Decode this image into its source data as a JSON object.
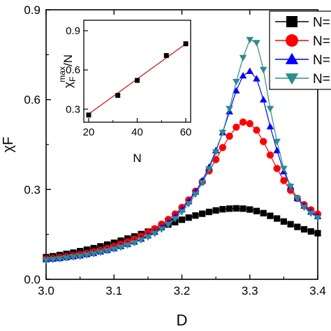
{
  "chart_data": [
    {
      "type": "line",
      "xlabel": "D",
      "ylabel": "χF",
      "xlim": [
        3.0,
        3.4
      ],
      "ylim": [
        0.0,
        0.9
      ],
      "xticks": [
        "3.0",
        "3.1",
        "3.2",
        "3.3",
        "3.4"
      ],
      "yticks": [
        "0.0",
        "0.3",
        "0.6",
        "0.9"
      ],
      "grid": false,
      "legend": "top-right",
      "series": [
        {
          "name": "N=",
          "color": "#000000",
          "marker": "square",
          "x": [
            3.0,
            3.01,
            3.02,
            3.03,
            3.04,
            3.05,
            3.06,
            3.07,
            3.08,
            3.09,
            3.1,
            3.11,
            3.12,
            3.13,
            3.14,
            3.15,
            3.16,
            3.17,
            3.18,
            3.19,
            3.2,
            3.21,
            3.22,
            3.23,
            3.24,
            3.25,
            3.26,
            3.27,
            3.28,
            3.29,
            3.3,
            3.31,
            3.32,
            3.33,
            3.34,
            3.35,
            3.36,
            3.37,
            3.38,
            3.39,
            3.4
          ],
          "y": [
            0.074,
            0.077,
            0.081,
            0.085,
            0.089,
            0.094,
            0.099,
            0.104,
            0.11,
            0.116,
            0.122,
            0.129,
            0.136,
            0.143,
            0.151,
            0.159,
            0.167,
            0.175,
            0.183,
            0.191,
            0.199,
            0.206,
            0.213,
            0.219,
            0.225,
            0.23,
            0.234,
            0.236,
            0.237,
            0.236,
            0.233,
            0.228,
            0.221,
            0.212,
            0.203,
            0.193,
            0.184,
            0.175,
            0.167,
            0.16,
            0.154
          ]
        },
        {
          "name": "N=",
          "color": "#ff0000",
          "marker": "circle",
          "x": [
            3.0,
            3.01,
            3.02,
            3.03,
            3.04,
            3.05,
            3.06,
            3.07,
            3.08,
            3.09,
            3.1,
            3.11,
            3.12,
            3.13,
            3.14,
            3.15,
            3.16,
            3.17,
            3.18,
            3.19,
            3.2,
            3.21,
            3.22,
            3.23,
            3.24,
            3.25,
            3.26,
            3.27,
            3.28,
            3.29,
            3.3,
            3.31,
            3.32,
            3.33,
            3.34,
            3.35,
            3.36,
            3.37,
            3.38,
            3.39,
            3.4
          ],
          "y": [
            0.068,
            0.07,
            0.073,
            0.076,
            0.079,
            0.083,
            0.087,
            0.092,
            0.097,
            0.103,
            0.11,
            0.117,
            0.125,
            0.134,
            0.144,
            0.156,
            0.169,
            0.184,
            0.2,
            0.218,
            0.24,
            0.265,
            0.294,
            0.326,
            0.362,
            0.4,
            0.44,
            0.478,
            0.508,
            0.525,
            0.52,
            0.498,
            0.46,
            0.415,
            0.37,
            0.33,
            0.297,
            0.27,
            0.249,
            0.232,
            0.218
          ]
        },
        {
          "name": "N=",
          "color": "#0000ff",
          "marker": "triangle-up",
          "x": [
            3.0,
            3.01,
            3.02,
            3.03,
            3.04,
            3.05,
            3.06,
            3.07,
            3.08,
            3.09,
            3.1,
            3.11,
            3.12,
            3.13,
            3.14,
            3.15,
            3.16,
            3.17,
            3.18,
            3.19,
            3.2,
            3.21,
            3.22,
            3.23,
            3.24,
            3.25,
            3.26,
            3.27,
            3.28,
            3.29,
            3.3,
            3.31,
            3.32,
            3.33,
            3.34,
            3.35,
            3.36,
            3.37,
            3.38,
            3.39,
            3.4
          ],
          "y": [
            0.066,
            0.068,
            0.07,
            0.073,
            0.076,
            0.079,
            0.083,
            0.087,
            0.092,
            0.097,
            0.103,
            0.11,
            0.117,
            0.125,
            0.135,
            0.146,
            0.158,
            0.173,
            0.19,
            0.21,
            0.233,
            0.26,
            0.292,
            0.33,
            0.375,
            0.43,
            0.49,
            0.56,
            0.63,
            0.68,
            0.695,
            0.67,
            0.6,
            0.51,
            0.43,
            0.36,
            0.31,
            0.27,
            0.245,
            0.225,
            0.21
          ]
        },
        {
          "name": "N=",
          "color": "#2e8b8b",
          "marker": "triangle-down",
          "x": [
            3.0,
            3.01,
            3.02,
            3.03,
            3.04,
            3.05,
            3.06,
            3.07,
            3.08,
            3.09,
            3.1,
            3.11,
            3.12,
            3.13,
            3.14,
            3.15,
            3.16,
            3.17,
            3.18,
            3.19,
            3.2,
            3.21,
            3.22,
            3.23,
            3.24,
            3.25,
            3.26,
            3.27,
            3.28,
            3.29,
            3.3,
            3.31,
            3.32,
            3.33,
            3.34,
            3.35,
            3.36,
            3.37,
            3.38,
            3.39,
            3.4
          ],
          "y": [
            0.064,
            0.066,
            0.068,
            0.071,
            0.074,
            0.077,
            0.081,
            0.085,
            0.09,
            0.095,
            0.101,
            0.107,
            0.114,
            0.122,
            0.131,
            0.141,
            0.153,
            0.167,
            0.183,
            0.202,
            0.225,
            0.252,
            0.284,
            0.322,
            0.368,
            0.425,
            0.49,
            0.57,
            0.66,
            0.74,
            0.8,
            0.79,
            0.7,
            0.57,
            0.46,
            0.37,
            0.31,
            0.27,
            0.24,
            0.22,
            0.205
          ]
        }
      ]
    },
    {
      "type": "line",
      "xlabel": "N",
      "ylabel": "χFmax/N",
      "ylabel_parts": {
        "base": "χ",
        "sub": "F",
        "sup": "max",
        "tail": "/N"
      },
      "xlim": [
        18,
        62
      ],
      "ylim": [
        0.2,
        0.98
      ],
      "xticks": [
        "20",
        "40",
        "60"
      ],
      "xtick_minor": [
        30,
        50
      ],
      "yticks": [
        "0.3",
        "0.6",
        "0.9"
      ],
      "series": [
        {
          "name": "",
          "color": "#000000",
          "marker": "square",
          "x": [
            20,
            32,
            40,
            52,
            60
          ],
          "y": [
            0.255,
            0.405,
            0.52,
            0.71,
            0.8
          ]
        }
      ],
      "fit": {
        "color": "#d02020",
        "x": [
          20,
          60
        ],
        "y": [
          0.262,
          0.8
        ]
      }
    }
  ]
}
